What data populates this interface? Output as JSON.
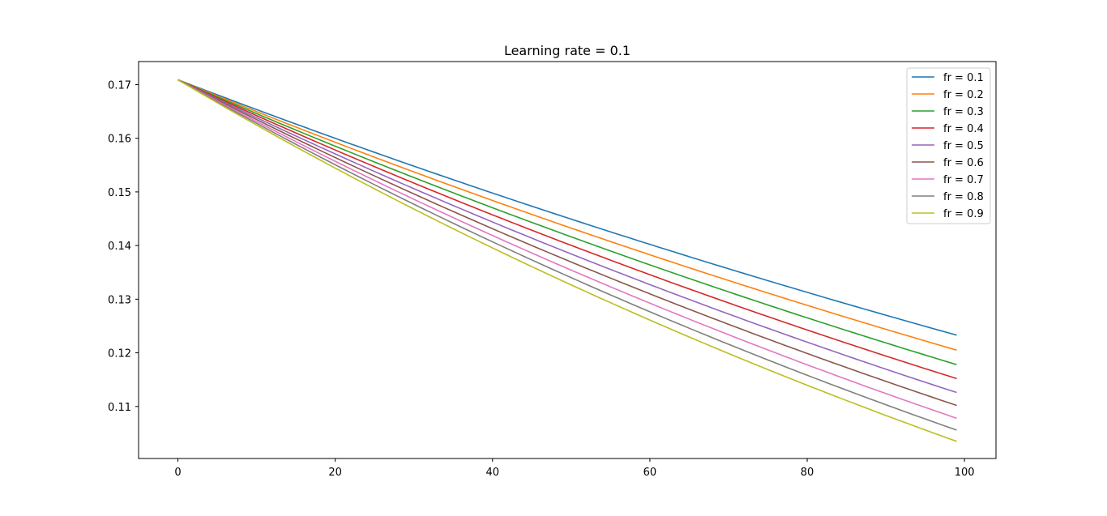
{
  "chart_data": {
    "type": "line",
    "title": "Learning rate = 0.1",
    "xlabel": "",
    "ylabel": "",
    "xlim": [
      -5,
      104
    ],
    "ylim": [
      0.1003,
      0.1743
    ],
    "x_ticks": [
      0,
      20,
      40,
      60,
      80,
      100
    ],
    "y_ticks": [
      0.11,
      0.12,
      0.13,
      0.14,
      0.15,
      0.16,
      0.17
    ],
    "x_tick_labels": [
      "0",
      "20",
      "40",
      "60",
      "80",
      "100"
    ],
    "y_tick_labels": [
      "0.11",
      "0.12",
      "0.13",
      "0.14",
      "0.15",
      "0.16",
      "0.17"
    ],
    "grid": false,
    "legend_position": "top-right",
    "x_start": 0,
    "x_end": 99,
    "series": [
      {
        "name": "fr = 0.1",
        "color": "#1f77b4",
        "start": 0.1709,
        "end": 0.1233
      },
      {
        "name": "fr = 0.2",
        "color": "#ff7f0e",
        "start": 0.1709,
        "end": 0.1205
      },
      {
        "name": "fr = 0.3",
        "color": "#2ca02c",
        "start": 0.1709,
        "end": 0.1178
      },
      {
        "name": "fr = 0.4",
        "color": "#d62728",
        "start": 0.1709,
        "end": 0.1152
      },
      {
        "name": "fr = 0.5",
        "color": "#9467bd",
        "start": 0.1709,
        "end": 0.1126
      },
      {
        "name": "fr = 0.6",
        "color": "#8c564b",
        "start": 0.1709,
        "end": 0.1102
      },
      {
        "name": "fr = 0.7",
        "color": "#e377c2",
        "start": 0.1709,
        "end": 0.1078
      },
      {
        "name": "fr = 0.8",
        "color": "#7f7f7f",
        "start": 0.1709,
        "end": 0.1056
      },
      {
        "name": "fr = 0.9",
        "color": "#bcbd22",
        "start": 0.1709,
        "end": 0.1035
      }
    ]
  }
}
